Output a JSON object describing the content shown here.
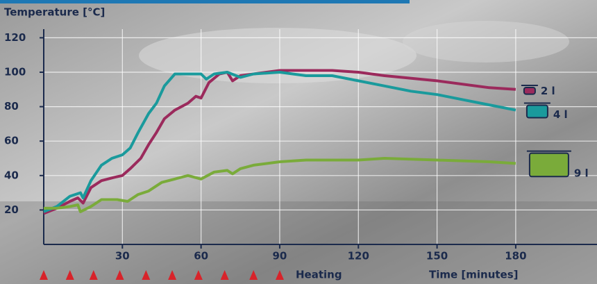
{
  "chart_data": {
    "type": "line",
    "title": "Temperature [°C]",
    "xlabel": "Time [minutes]",
    "heating_label": "Heating",
    "heating_marks": [
      0,
      10,
      19,
      29,
      39,
      49,
      59,
      69,
      80,
      90
    ],
    "heating_color": "#d8232a",
    "xlim": [
      0,
      211
    ],
    "ylim": [
      0,
      125
    ],
    "xticks": [
      30,
      60,
      90,
      120,
      150,
      180
    ],
    "yticks": [
      20,
      40,
      60,
      80,
      100,
      120
    ],
    "grid": true,
    "series": [
      {
        "name": "2 l",
        "color": "#9b2a5c",
        "x": [
          0,
          5,
          10,
          13,
          15,
          18,
          22,
          27,
          30,
          33,
          37,
          40,
          43,
          46,
          50,
          55,
          58,
          60,
          63,
          67,
          70,
          72,
          75,
          80,
          90,
          100,
          110,
          120,
          130,
          150,
          170,
          180
        ],
        "values": [
          18,
          21,
          25,
          27,
          24,
          33,
          37,
          39,
          40,
          44,
          50,
          58,
          65,
          73,
          78,
          82,
          86,
          85,
          94,
          99,
          100,
          95,
          98,
          99,
          101,
          101,
          101,
          100,
          98,
          95,
          91,
          90
        ]
      },
      {
        "name": "4 l",
        "color": "#1a9a9c",
        "x": [
          0,
          5,
          10,
          14,
          15,
          18,
          22,
          26,
          30,
          33,
          36,
          40,
          43,
          46,
          50,
          55,
          60,
          62,
          65,
          70,
          75,
          80,
          90,
          100,
          110,
          120,
          130,
          140,
          150,
          160,
          170,
          180
        ],
        "values": [
          19,
          22,
          28,
          30,
          27,
          37,
          46,
          50,
          52,
          56,
          65,
          76,
          82,
          92,
          99,
          99,
          99,
          96,
          99,
          100,
          97,
          99,
          100,
          98,
          98,
          95,
          92,
          89,
          87,
          84,
          81,
          78
        ]
      },
      {
        "name": "9 l",
        "color": "#7aab3a",
        "x": [
          0,
          5,
          10,
          13,
          14,
          18,
          22,
          28,
          32,
          36,
          40,
          45,
          50,
          55,
          60,
          65,
          70,
          72,
          75,
          80,
          90,
          100,
          120,
          130,
          150,
          170,
          180
        ],
        "values": [
          21,
          21,
          22,
          23,
          19,
          22,
          26,
          26,
          25,
          29,
          31,
          36,
          38,
          40,
          38,
          42,
          43,
          41,
          44,
          46,
          48,
          49,
          49,
          50,
          49,
          48,
          47
        ]
      }
    ]
  }
}
